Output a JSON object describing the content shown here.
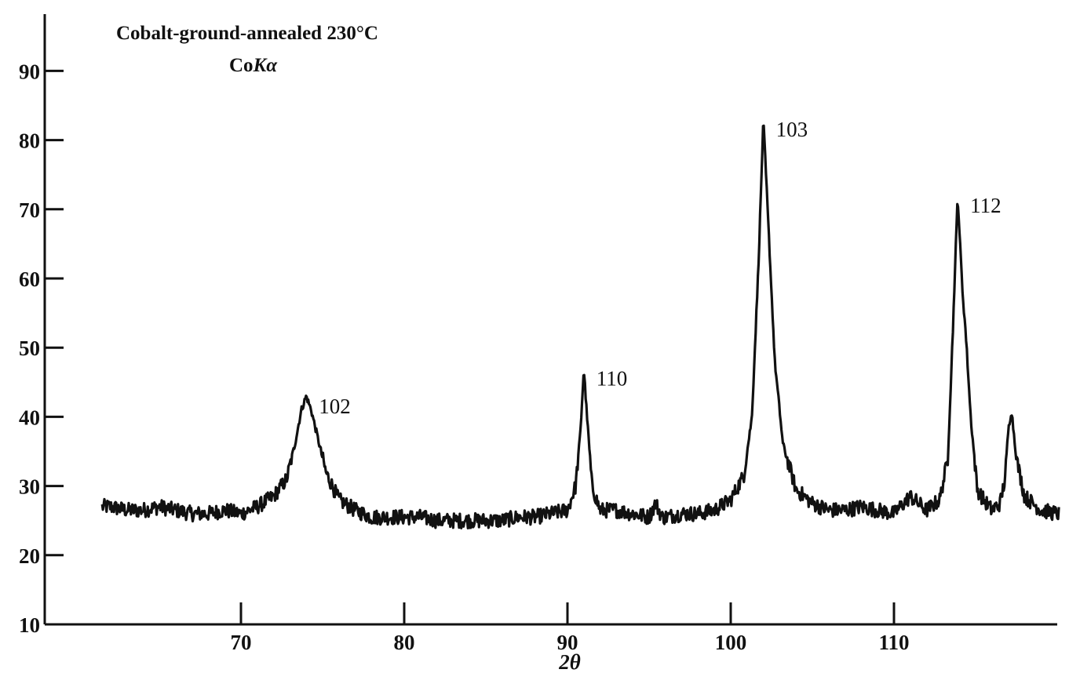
{
  "chart_data": {
    "type": "line",
    "title": "Cobalt-ground-annealed 230°C",
    "subtitle_main": "Co",
    "subtitle_italic": "Kα",
    "xlabel": "2θ",
    "ylabel": "",
    "xlim": [
      60,
      120
    ],
    "ylim": [
      10,
      98
    ],
    "x_ticks": [
      70,
      80,
      90,
      100,
      110
    ],
    "y_ticks": [
      10,
      20,
      30,
      40,
      50,
      60,
      70,
      80,
      90
    ],
    "grid": false,
    "peaks": [
      {
        "label": "102",
        "x": 74.0,
        "y": 43
      },
      {
        "label": "110",
        "x": 91.0,
        "y": 47
      },
      {
        "label": "103",
        "x": 102.0,
        "y": 83
      },
      {
        "label": "112",
        "x": 113.9,
        "y": 72
      }
    ],
    "series": [
      {
        "x": [
          62,
          63,
          64,
          65,
          66,
          67,
          68,
          69,
          70,
          71,
          72,
          72.8,
          73.3,
          73.7,
          74.0,
          74.3,
          74.7,
          75.2,
          76,
          77,
          78,
          79,
          80,
          81,
          82,
          83,
          84,
          85,
          86,
          87,
          88,
          89,
          90,
          90.5,
          90.8,
          91.0,
          91.2,
          91.5,
          92,
          93,
          94,
          95,
          95.4,
          95.8,
          96,
          97,
          98,
          99,
          100,
          100.8,
          101.3,
          101.7,
          102.0,
          102.3,
          102.7,
          103.2,
          104,
          105,
          106,
          107,
          108,
          109,
          110,
          111,
          112,
          112.8,
          113.3,
          113.6,
          113.9,
          114.2,
          114.4,
          114.7,
          115.1,
          115.5,
          116,
          116.5,
          116.8,
          117.0,
          117.2,
          117.5,
          118,
          119,
          120
        ],
        "y": [
          27,
          26.5,
          26.5,
          27,
          26.5,
          26,
          26,
          26.5,
          26,
          27,
          28.5,
          31,
          36,
          41,
          43,
          41,
          37,
          32,
          28,
          26.5,
          25.5,
          25.5,
          25.5,
          25.5,
          25,
          25,
          25,
          25,
          25,
          25.5,
          25.5,
          26,
          26.5,
          30,
          38,
          47,
          40,
          30,
          26.5,
          26.5,
          26,
          25.5,
          27.5,
          25.5,
          25.5,
          26,
          26,
          26.5,
          28,
          31.5,
          40,
          62,
          83,
          68,
          48,
          36,
          29.5,
          27.5,
          26.5,
          26.5,
          27,
          26.5,
          26,
          28.5,
          26.5,
          28,
          34,
          52,
          72,
          58,
          52,
          40,
          29.5,
          28,
          26.5,
          27.5,
          31,
          38,
          41,
          34,
          28.5,
          26.5,
          26
        ]
      }
    ]
  }
}
